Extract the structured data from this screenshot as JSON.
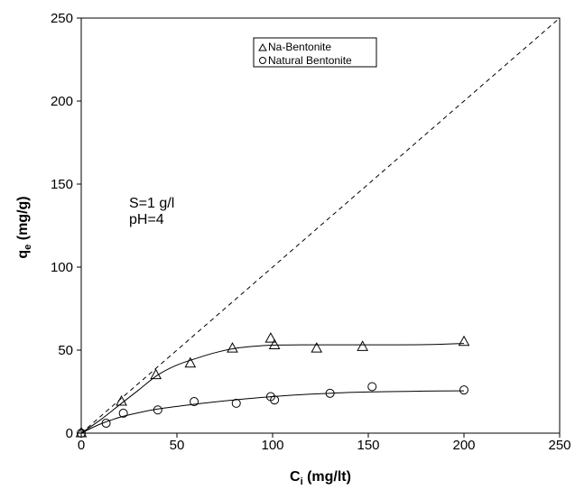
{
  "chart_data": {
    "type": "scatter",
    "xlabel": {
      "main": "C",
      "sub": "i",
      "rest": " (mg/lt)"
    },
    "ylabel": {
      "main": "q",
      "sub": "e",
      "rest": " (mg/g)"
    },
    "xlim": [
      0,
      250
    ],
    "ylim": [
      0,
      250
    ],
    "xticks": [
      "0",
      "50",
      "100",
      "150",
      "200",
      "250"
    ],
    "yticks": [
      "0",
      "50",
      "100",
      "150",
      "200",
      "250"
    ],
    "xtick_values": [
      0,
      50,
      100,
      150,
      200,
      250
    ],
    "ytick_values": [
      0,
      50,
      100,
      150,
      200,
      250
    ],
    "grid": false,
    "legend_position": "top-center",
    "annotations": [
      "S=1 g/l",
      "pH=4"
    ],
    "reference_line": {
      "style": "dashed",
      "from": [
        0,
        0
      ],
      "to": [
        250,
        250
      ]
    },
    "series": [
      {
        "name": "Na-Bentonite",
        "marker": "triangle",
        "points": [
          [
            0,
            0
          ],
          [
            21,
            19
          ],
          [
            39,
            35
          ],
          [
            57,
            42
          ],
          [
            79,
            51
          ],
          [
            99,
            57
          ],
          [
            101,
            53
          ],
          [
            123,
            51
          ],
          [
            147,
            52
          ],
          [
            200,
            55
          ]
        ],
        "fit": [
          [
            0,
            0
          ],
          [
            10,
            8
          ],
          [
            20,
            17
          ],
          [
            30,
            26
          ],
          [
            40,
            35
          ],
          [
            50,
            41
          ],
          [
            60,
            45
          ],
          [
            70,
            48.5
          ],
          [
            80,
            51
          ],
          [
            90,
            52.3
          ],
          [
            100,
            53
          ],
          [
            120,
            53.2
          ],
          [
            150,
            53.2
          ],
          [
            180,
            53.3
          ],
          [
            200,
            54
          ]
        ]
      },
      {
        "name": "Natural Bentonite",
        "marker": "circle",
        "points": [
          [
            0,
            0
          ],
          [
            13,
            6
          ],
          [
            22,
            12
          ],
          [
            40,
            14
          ],
          [
            59,
            19
          ],
          [
            81,
            18
          ],
          [
            99,
            22
          ],
          [
            101,
            20
          ],
          [
            130,
            24
          ],
          [
            152,
            28
          ],
          [
            200,
            26
          ]
        ],
        "fit": [
          [
            0,
            0
          ],
          [
            10,
            5.5
          ],
          [
            20,
            9.5
          ],
          [
            30,
            12.3
          ],
          [
            40,
            14.5
          ],
          [
            60,
            17.5
          ],
          [
            80,
            20
          ],
          [
            100,
            22
          ],
          [
            120,
            23.5
          ],
          [
            140,
            24.5
          ],
          [
            160,
            25
          ],
          [
            180,
            25.3
          ],
          [
            200,
            25.5
          ]
        ]
      }
    ]
  }
}
